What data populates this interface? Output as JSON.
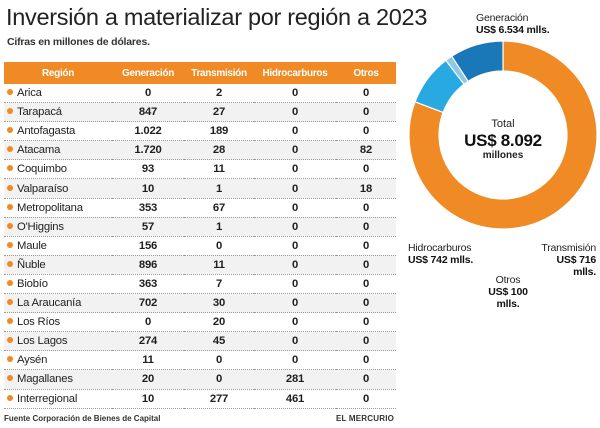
{
  "title": "Inversión a materializar por región a 2023",
  "subtitle": "Cifras en millones de dólares.",
  "table": {
    "headers": [
      "Región",
      "Generación",
      "Transmisión",
      "Hidrocarburos",
      "Otros"
    ],
    "rows": [
      [
        "Arica",
        "0",
        "2",
        "0",
        "0"
      ],
      [
        "Tarapacá",
        "847",
        "27",
        "0",
        "0"
      ],
      [
        "Antofagasta",
        "1.022",
        "189",
        "0",
        "0"
      ],
      [
        "Atacama",
        "1.720",
        "28",
        "0",
        "82"
      ],
      [
        "Coquimbo",
        "93",
        "11",
        "0",
        "0"
      ],
      [
        "Valparaíso",
        "10",
        "1",
        "0",
        "18"
      ],
      [
        "Metropolitana",
        "353",
        "67",
        "0",
        "0"
      ],
      [
        "O'Higgins",
        "57",
        "1",
        "0",
        "0"
      ],
      [
        "Maule",
        "156",
        "0",
        "0",
        "0"
      ],
      [
        "Ñuble",
        "896",
        "11",
        "0",
        "0"
      ],
      [
        "Biobío",
        "363",
        "7",
        "0",
        "0"
      ],
      [
        "La Araucanía",
        "702",
        "30",
        "0",
        "0"
      ],
      [
        "Los Ríos",
        "0",
        "20",
        "0",
        "0"
      ],
      [
        "Los Lagos",
        "274",
        "45",
        "0",
        "0"
      ],
      [
        "Aysén",
        "11",
        "0",
        "0",
        "0"
      ],
      [
        "Magallanes",
        "20",
        "0",
        "281",
        "0"
      ],
      [
        "Interregional",
        "10",
        "277",
        "461",
        "0"
      ]
    ]
  },
  "donut": {
    "total_label": "Total",
    "total_value": "US$ 8.092",
    "total_unit": "millones",
    "segments": [
      {
        "name": "Generación",
        "value_text": "US$ 6.534 mlls."
      },
      {
        "name": "Transmisión",
        "value_text": "US$ 716 mlls."
      },
      {
        "name": "Otros",
        "value_text": "US$ 100 mlls."
      },
      {
        "name": "Hidrocarburos",
        "value_text": "US$ 742 mlls."
      }
    ]
  },
  "chart_data": {
    "type": "pie",
    "title": "Inversión a materializar por región a 2023",
    "unit": "millones de dólares",
    "categories": [
      "Generación",
      "Transmisión",
      "Otros",
      "Hidrocarburos"
    ],
    "values": [
      6534,
      716,
      100,
      742
    ],
    "total": 8092,
    "colors": [
      "#f08a24",
      "#29a9e1",
      "#8cc9e8",
      "#1a77b8"
    ]
  },
  "footer": {
    "source": "Fuente Corporación de Bienes de Capital",
    "brand": "EL MERCURIO"
  }
}
